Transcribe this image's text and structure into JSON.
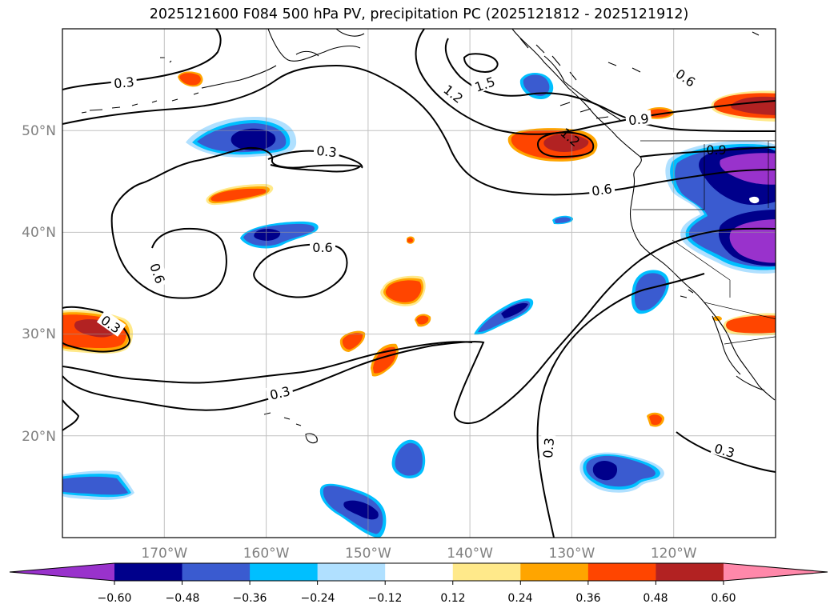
{
  "title": "2025121600 F084 500 hPa PV, precipitation PC (2025121812 - 2025121912)",
  "map": {
    "projection": "PlateCarree",
    "lon_range": [
      "180°W",
      "110°W"
    ],
    "lat_range": [
      "10°N",
      "60°N"
    ],
    "lat_tick_labels": [
      "50°N",
      "40°N",
      "30°N",
      "20°N"
    ],
    "lon_tick_labels": [
      "170°W",
      "160°W",
      "150°W",
      "140°W",
      "130°W",
      "120°W"
    ],
    "gridlines": true,
    "contour_labels": [
      "0.3",
      "0.3",
      "0.3",
      "0.3",
      "0.3",
      "0.3",
      "0.6",
      "0.6",
      "0.6",
      "0.6",
      "0.9",
      "1.2",
      "1.5",
      "1.2",
      "0.9"
    ]
  },
  "colorbar": {
    "tick_labels": [
      "−0.60",
      "−0.48",
      "−0.36",
      "−0.24",
      "−0.12",
      "0.12",
      "0.24",
      "0.36",
      "0.48",
      "0.60"
    ],
    "colors": [
      "#9932cc",
      "#00008b",
      "#3a5bd0",
      "#00bfff",
      "#b0e0ff",
      "#ffffff",
      "#ffe98a",
      "#ffa500",
      "#ff4500",
      "#b22222",
      "#ff88aa"
    ],
    "extend": "both"
  }
}
